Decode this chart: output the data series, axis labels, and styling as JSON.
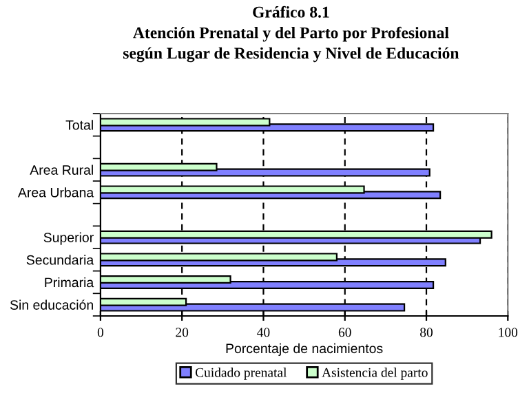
{
  "chart_data": {
    "type": "bar",
    "orientation": "horizontal",
    "title": "Gráfico 8.1\nAtención Prenatal y del Parto por Profesional\nsegún Lugar de Residencia y Nivel de Educación",
    "xlabel": "Porcentaje de nacimientos",
    "categories": [
      "Total",
      null,
      "Area Rural",
      "Area Urbana",
      null,
      "Superior",
      "Secundaria",
      "Primaria",
      "Sin educación"
    ],
    "series": [
      {
        "name": "Cuidado prenatal",
        "color": "#8080ff",
        "values": [
          81.7,
          null,
          80.8,
          83.4,
          null,
          93.2,
          84.7,
          81.7,
          74.6
        ]
      },
      {
        "name": "Asistencia del parto",
        "color": "#ccffcc",
        "values": [
          41.5,
          null,
          28.5,
          64.7,
          null,
          96.0,
          58.0,
          31.9,
          21.0
        ]
      }
    ],
    "xlim": [
      0,
      100
    ],
    "xticks": [
      0,
      20,
      40,
      60,
      80,
      100
    ],
    "grid": "x",
    "legend": "bottom"
  }
}
